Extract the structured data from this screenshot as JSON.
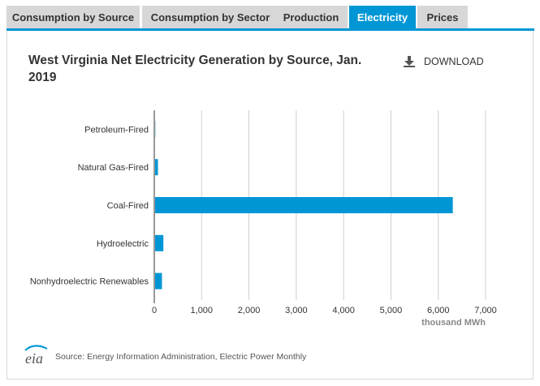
{
  "tabs": [
    {
      "label": "Consumption by Source",
      "active": false
    },
    {
      "label": "Consumption by Sector",
      "active": false
    },
    {
      "label": "Production",
      "active": false
    },
    {
      "label": "Electricity",
      "active": true
    },
    {
      "label": "Prices",
      "active": false
    }
  ],
  "download": {
    "label": "DOWNLOAD",
    "icon": "download-icon"
  },
  "source": {
    "text": "Source: Energy Information Administration, Electric Power Monthly",
    "logo_text": "eia"
  },
  "colors": {
    "accent": "#0096d6",
    "bar": "#0096d6",
    "tab_inactive": "#d7d7d7",
    "grid": "#cfcfcf"
  },
  "chart_data": {
    "type": "bar",
    "orientation": "horizontal",
    "title": "West Virginia Net Electricity Generation by Source, Jan. 2019",
    "categories": [
      "Petroleum-Fired",
      "Natural Gas-Fired",
      "Coal-Fired",
      "Hydroelectric",
      "Nonhydroelectric Renewables"
    ],
    "values": [
      5,
      60,
      6290,
      175,
      145
    ],
    "xlabel": "thousand MWh",
    "ylabel": "",
    "xlim": [
      0,
      7000
    ],
    "xticks": [
      0,
      1000,
      2000,
      3000,
      4000,
      5000,
      6000,
      7000
    ],
    "xtick_labels": [
      "0",
      "1,000",
      "2,000",
      "3,000",
      "4,000",
      "5,000",
      "6,000",
      "7,000"
    ],
    "grid": true,
    "legend": "none"
  }
}
